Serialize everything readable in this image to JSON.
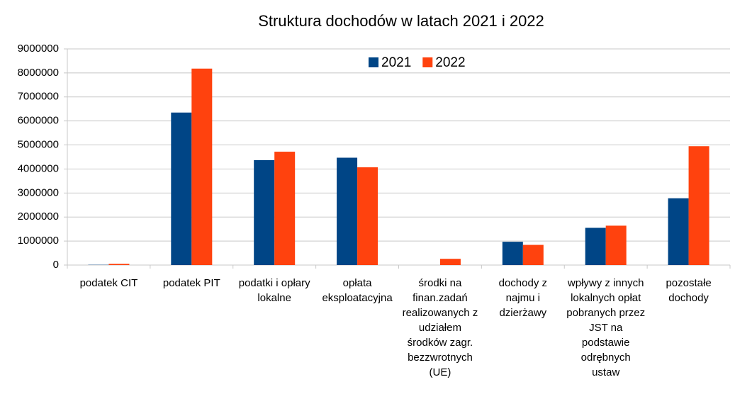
{
  "chart_data": {
    "type": "bar",
    "title": "Struktura dochodów w latach 2021 i 2022",
    "categories": [
      "podatek CIT",
      "podatek PIT",
      "podatki i opłary lokalne",
      "opłata eksploatacyjna",
      "środki na finan.zadań realizowanych z udziałem środków zagr. bezzwrotnych (UE)",
      "dochody z najmu i dzierżawy",
      "wpływy z innych lokalnych opłat pobranych przez JST na podstawie odrębnych ustaw",
      "pozostałe dochody"
    ],
    "series": [
      {
        "name": "2021",
        "color": "#004586",
        "values": [
          10000,
          6350000,
          4370000,
          4470000,
          0,
          970000,
          1550000,
          2780000
        ]
      },
      {
        "name": "2022",
        "color": "#ff420e",
        "values": [
          50000,
          8180000,
          4720000,
          4070000,
          260000,
          840000,
          1640000,
          4950000
        ]
      }
    ],
    "ylim": [
      0,
      9000000
    ],
    "yticks": [
      0,
      1000000,
      2000000,
      3000000,
      4000000,
      5000000,
      6000000,
      7000000,
      8000000,
      9000000
    ],
    "grid": true,
    "legend": "top"
  }
}
